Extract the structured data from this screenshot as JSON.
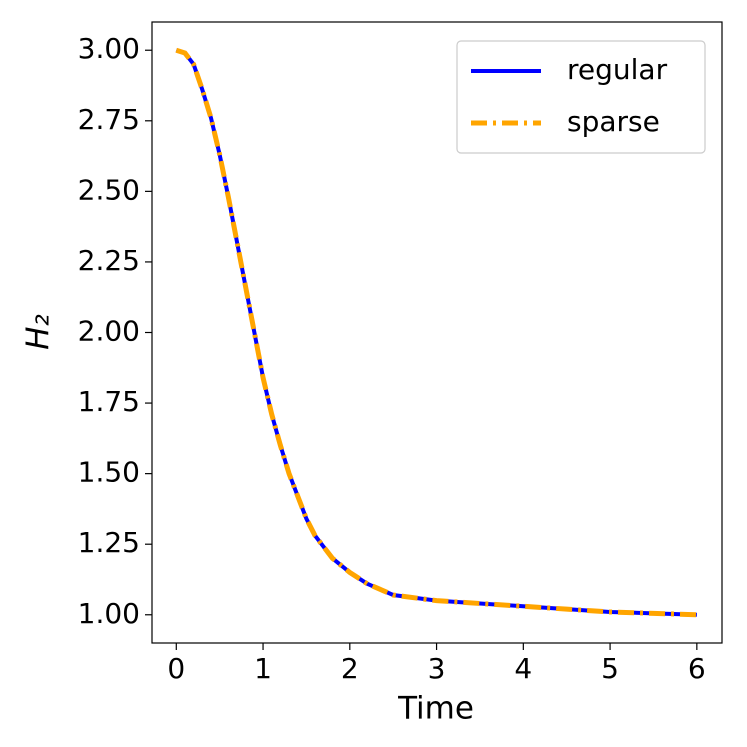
{
  "chart_data": {
    "type": "line",
    "xlabel": "Time",
    "ylabel": "H₂",
    "x": [
      0,
      0.1,
      0.2,
      0.3,
      0.4,
      0.5,
      0.6,
      0.7,
      0.8,
      0.9,
      1.0,
      1.1,
      1.2,
      1.3,
      1.4,
      1.5,
      1.6,
      1.8,
      2.0,
      2.2,
      2.5,
      3.0,
      3.5,
      4.0,
      4.5,
      5.0,
      5.5,
      6.0
    ],
    "series": [
      {
        "name": "regular",
        "color": "#0000ff",
        "linestyle": "solid",
        "values": [
          3.0,
          2.99,
          2.95,
          2.86,
          2.76,
          2.63,
          2.48,
          2.32,
          2.16,
          2.0,
          1.84,
          1.71,
          1.6,
          1.5,
          1.42,
          1.34,
          1.28,
          1.2,
          1.15,
          1.11,
          1.07,
          1.05,
          1.04,
          1.03,
          1.02,
          1.01,
          1.005,
          1.0
        ]
      },
      {
        "name": "sparse",
        "color": "#ffa500",
        "linestyle": "dashdot",
        "values": [
          3.0,
          2.99,
          2.95,
          2.86,
          2.76,
          2.63,
          2.48,
          2.32,
          2.16,
          2.0,
          1.84,
          1.71,
          1.6,
          1.5,
          1.42,
          1.34,
          1.28,
          1.2,
          1.15,
          1.11,
          1.07,
          1.05,
          1.04,
          1.03,
          1.02,
          1.01,
          1.005,
          1.0
        ]
      }
    ],
    "xlim": [
      -0.28,
      6.29
    ],
    "ylim": [
      0.9,
      3.1
    ],
    "xticks": [
      0,
      1,
      2,
      3,
      4,
      5,
      6
    ],
    "yticks": [
      {
        "value": 1.0,
        "label": "1.00"
      },
      {
        "value": 1.25,
        "label": "1.25"
      },
      {
        "value": 1.5,
        "label": "1.50"
      },
      {
        "value": 1.75,
        "label": "1.75"
      },
      {
        "value": 2.0,
        "label": "2.00"
      },
      {
        "value": 2.25,
        "label": "2.25"
      },
      {
        "value": 2.5,
        "label": "2.50"
      },
      {
        "value": 2.75,
        "label": "2.75"
      },
      {
        "value": 3.0,
        "label": "3.00"
      }
    ],
    "legend": "upper right",
    "grid": false
  }
}
